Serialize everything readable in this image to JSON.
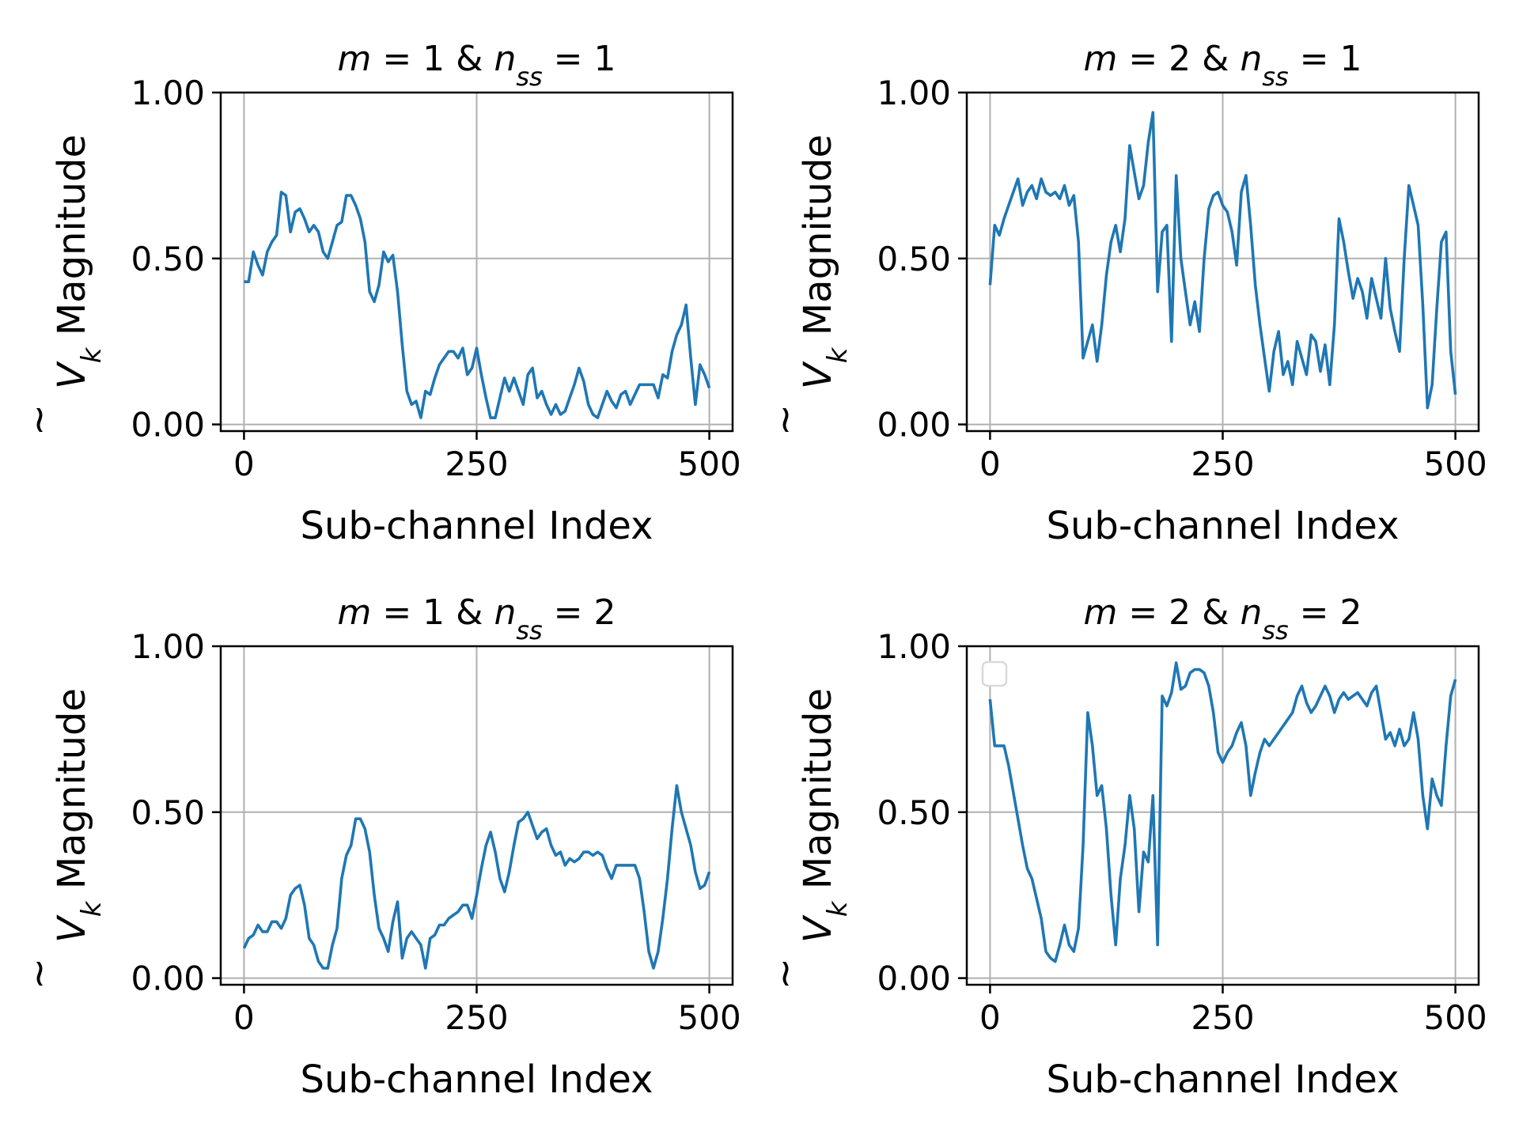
{
  "colors": {
    "series": "#1f77b4",
    "grid": "#b0b0b0",
    "axis": "#000000",
    "legend_border": "#d9d9d9"
  },
  "chart_data": [
    {
      "type": "line",
      "title": "m = 1 & n_ss = 1",
      "title_parts": {
        "a": "m",
        "b": " = 1 & ",
        "c": "n",
        "sub": "ss",
        "d": " = 1"
      },
      "xlabel": "Sub-channel Index",
      "ylabel": "Ṽ_k Magnitude",
      "ylabel_parts": {
        "sym": "V",
        "tilde": "~",
        "sub": "k",
        "rest": " Magnitude"
      },
      "xlim": [
        -25,
        525
      ],
      "ylim": [
        -0.02,
        1.0
      ],
      "xticks": [
        0,
        250,
        500
      ],
      "xtick_labels": [
        "0",
        "250",
        "500"
      ],
      "yticks": [
        0,
        0.5,
        1.0
      ],
      "ytick_labels": [
        "0.00",
        "0.50",
        "1.00"
      ],
      "grid": true,
      "legend": "none",
      "x": [
        0,
        5,
        10,
        15,
        20,
        25,
        30,
        35,
        40,
        45,
        50,
        55,
        60,
        65,
        70,
        75,
        80,
        85,
        90,
        95,
        100,
        105,
        110,
        115,
        120,
        125,
        130,
        135,
        140,
        145,
        150,
        155,
        160,
        165,
        170,
        175,
        180,
        185,
        190,
        195,
        200,
        205,
        210,
        215,
        220,
        225,
        230,
        235,
        240,
        245,
        250,
        255,
        260,
        265,
        270,
        275,
        280,
        285,
        290,
        295,
        300,
        305,
        310,
        315,
        320,
        325,
        330,
        335,
        340,
        345,
        350,
        355,
        360,
        365,
        370,
        375,
        380,
        385,
        390,
        395,
        400,
        405,
        410,
        415,
        420,
        425,
        430,
        435,
        440,
        445,
        450,
        455,
        460,
        465,
        470,
        475,
        480,
        485,
        490,
        495,
        500
      ],
      "y": [
        0.43,
        0.43,
        0.52,
        0.48,
        0.45,
        0.52,
        0.55,
        0.57,
        0.7,
        0.69,
        0.58,
        0.64,
        0.65,
        0.62,
        0.58,
        0.6,
        0.58,
        0.52,
        0.5,
        0.55,
        0.6,
        0.61,
        0.69,
        0.69,
        0.66,
        0.62,
        0.55,
        0.4,
        0.37,
        0.42,
        0.52,
        0.49,
        0.51,
        0.4,
        0.24,
        0.1,
        0.06,
        0.07,
        0.02,
        0.1,
        0.09,
        0.14,
        0.18,
        0.2,
        0.22,
        0.22,
        0.2,
        0.23,
        0.15,
        0.17,
        0.23,
        0.15,
        0.08,
        0.02,
        0.02,
        0.08,
        0.14,
        0.1,
        0.14,
        0.1,
        0.06,
        0.15,
        0.17,
        0.08,
        0.1,
        0.06,
        0.03,
        0.06,
        0.03,
        0.04,
        0.08,
        0.12,
        0.17,
        0.13,
        0.06,
        0.03,
        0.02,
        0.06,
        0.1,
        0.07,
        0.05,
        0.09,
        0.1,
        0.06,
        0.09,
        0.12,
        0.12,
        0.12,
        0.12,
        0.08,
        0.15,
        0.14,
        0.22,
        0.27,
        0.3,
        0.36,
        0.2,
        0.06,
        0.18,
        0.15,
        0.11
      ]
    },
    {
      "type": "line",
      "title": "m = 2 & n_ss = 1",
      "title_parts": {
        "a": "m",
        "b": " = 2 & ",
        "c": "n",
        "sub": "ss",
        "d": " = 1"
      },
      "xlabel": "Sub-channel Index",
      "ylabel": "Ṽ_k Magnitude",
      "ylabel_parts": {
        "sym": "V",
        "tilde": "~",
        "sub": "k",
        "rest": " Magnitude"
      },
      "xlim": [
        -25,
        525
      ],
      "ylim": [
        -0.02,
        1.0
      ],
      "xticks": [
        0,
        250,
        500
      ],
      "xtick_labels": [
        "0",
        "250",
        "500"
      ],
      "yticks": [
        0,
        0.5,
        1.0
      ],
      "ytick_labels": [
        "0.00",
        "0.50",
        "1.00"
      ],
      "grid": true,
      "legend": "none",
      "x": [
        0,
        5,
        10,
        15,
        20,
        25,
        30,
        35,
        40,
        45,
        50,
        55,
        60,
        65,
        70,
        75,
        80,
        85,
        90,
        95,
        100,
        105,
        110,
        115,
        120,
        125,
        130,
        135,
        140,
        145,
        150,
        155,
        160,
        165,
        170,
        175,
        180,
        185,
        190,
        195,
        200,
        205,
        210,
        215,
        220,
        225,
        230,
        235,
        240,
        245,
        250,
        255,
        260,
        265,
        270,
        275,
        280,
        285,
        290,
        295,
        300,
        305,
        310,
        315,
        320,
        325,
        330,
        335,
        340,
        345,
        350,
        355,
        360,
        365,
        370,
        375,
        380,
        385,
        390,
        395,
        400,
        405,
        410,
        415,
        420,
        425,
        430,
        435,
        440,
        445,
        450,
        455,
        460,
        465,
        470,
        475,
        480,
        485,
        490,
        495,
        500
      ],
      "y": [
        0.42,
        0.6,
        0.57,
        0.62,
        0.66,
        0.7,
        0.74,
        0.66,
        0.7,
        0.72,
        0.68,
        0.74,
        0.7,
        0.69,
        0.7,
        0.68,
        0.72,
        0.66,
        0.69,
        0.55,
        0.2,
        0.25,
        0.3,
        0.19,
        0.3,
        0.45,
        0.55,
        0.6,
        0.52,
        0.62,
        0.84,
        0.76,
        0.68,
        0.72,
        0.85,
        0.94,
        0.4,
        0.58,
        0.6,
        0.25,
        0.75,
        0.5,
        0.4,
        0.3,
        0.37,
        0.28,
        0.5,
        0.65,
        0.69,
        0.7,
        0.66,
        0.64,
        0.58,
        0.48,
        0.7,
        0.75,
        0.6,
        0.42,
        0.3,
        0.2,
        0.1,
        0.22,
        0.28,
        0.15,
        0.19,
        0.12,
        0.25,
        0.2,
        0.15,
        0.27,
        0.25,
        0.16,
        0.24,
        0.12,
        0.3,
        0.62,
        0.55,
        0.46,
        0.38,
        0.44,
        0.4,
        0.32,
        0.44,
        0.38,
        0.32,
        0.5,
        0.35,
        0.28,
        0.22,
        0.5,
        0.72,
        0.66,
        0.6,
        0.36,
        0.05,
        0.12,
        0.35,
        0.55,
        0.58,
        0.22,
        0.09
      ]
    },
    {
      "type": "line",
      "title": "m = 1 & n_ss = 2",
      "title_parts": {
        "a": "m",
        "b": " = 1 & ",
        "c": "n",
        "sub": "ss",
        "d": " = 2"
      },
      "xlabel": "Sub-channel Index",
      "ylabel": "Ṽ_k Magnitude",
      "ylabel_parts": {
        "sym": "V",
        "tilde": "~",
        "sub": "k",
        "rest": " Magnitude"
      },
      "xlim": [
        -25,
        525
      ],
      "ylim": [
        -0.02,
        1.0
      ],
      "xticks": [
        0,
        250,
        500
      ],
      "xtick_labels": [
        "0",
        "250",
        "500"
      ],
      "yticks": [
        0,
        0.5,
        1.0
      ],
      "ytick_labels": [
        "0.00",
        "0.50",
        "1.00"
      ],
      "grid": true,
      "legend": "none",
      "x": [
        0,
        5,
        10,
        15,
        20,
        25,
        30,
        35,
        40,
        45,
        50,
        55,
        60,
        65,
        70,
        75,
        80,
        85,
        90,
        95,
        100,
        105,
        110,
        115,
        120,
        125,
        130,
        135,
        140,
        145,
        150,
        155,
        160,
        165,
        170,
        175,
        180,
        185,
        190,
        195,
        200,
        205,
        210,
        215,
        220,
        225,
        230,
        235,
        240,
        245,
        250,
        255,
        260,
        265,
        270,
        275,
        280,
        285,
        290,
        295,
        300,
        305,
        310,
        315,
        320,
        325,
        330,
        335,
        340,
        345,
        350,
        355,
        360,
        365,
        370,
        375,
        380,
        385,
        390,
        395,
        400,
        405,
        410,
        415,
        420,
        425,
        430,
        435,
        440,
        445,
        450,
        455,
        460,
        465,
        470,
        475,
        480,
        485,
        490,
        495,
        500
      ],
      "y": [
        0.09,
        0.12,
        0.13,
        0.16,
        0.14,
        0.14,
        0.17,
        0.17,
        0.15,
        0.18,
        0.25,
        0.27,
        0.28,
        0.22,
        0.12,
        0.1,
        0.05,
        0.03,
        0.03,
        0.1,
        0.15,
        0.3,
        0.37,
        0.4,
        0.48,
        0.48,
        0.45,
        0.38,
        0.25,
        0.15,
        0.12,
        0.08,
        0.17,
        0.23,
        0.06,
        0.12,
        0.14,
        0.12,
        0.1,
        0.03,
        0.12,
        0.13,
        0.16,
        0.16,
        0.18,
        0.19,
        0.2,
        0.22,
        0.22,
        0.18,
        0.25,
        0.33,
        0.4,
        0.44,
        0.38,
        0.3,
        0.26,
        0.32,
        0.4,
        0.47,
        0.48,
        0.5,
        0.46,
        0.42,
        0.44,
        0.45,
        0.4,
        0.37,
        0.38,
        0.34,
        0.36,
        0.35,
        0.36,
        0.38,
        0.38,
        0.37,
        0.38,
        0.37,
        0.33,
        0.3,
        0.34,
        0.34,
        0.34,
        0.34,
        0.34,
        0.3,
        0.2,
        0.08,
        0.03,
        0.08,
        0.18,
        0.3,
        0.45,
        0.58,
        0.5,
        0.45,
        0.4,
        0.32,
        0.27,
        0.28,
        0.32
      ]
    },
    {
      "type": "line",
      "title": "m = 2 & n_ss = 2",
      "title_parts": {
        "a": "m",
        "b": " = 2 & ",
        "c": "n",
        "sub": "ss",
        "d": " = 2"
      },
      "xlabel": "Sub-channel Index",
      "ylabel": "Ṽ_k Magnitude",
      "ylabel_parts": {
        "sym": "V",
        "tilde": "~",
        "sub": "k",
        "rest": " Magnitude"
      },
      "xlim": [
        -25,
        525
      ],
      "ylim": [
        -0.02,
        1.0
      ],
      "xticks": [
        0,
        250,
        500
      ],
      "xtick_labels": [
        "0",
        "250",
        "500"
      ],
      "yticks": [
        0,
        0.5,
        1.0
      ],
      "ytick_labels": [
        "0.00",
        "0.50",
        "1.00"
      ],
      "grid": true,
      "legend": "upper-left (empty)",
      "x": [
        0,
        5,
        10,
        15,
        20,
        25,
        30,
        35,
        40,
        45,
        50,
        55,
        60,
        65,
        70,
        75,
        80,
        85,
        90,
        95,
        100,
        105,
        110,
        115,
        120,
        125,
        130,
        135,
        140,
        145,
        150,
        155,
        160,
        165,
        170,
        175,
        180,
        185,
        190,
        195,
        200,
        205,
        210,
        215,
        220,
        225,
        230,
        235,
        240,
        245,
        250,
        255,
        260,
        265,
        270,
        275,
        280,
        285,
        290,
        295,
        300,
        305,
        310,
        315,
        320,
        325,
        330,
        335,
        340,
        345,
        350,
        355,
        360,
        365,
        370,
        375,
        380,
        385,
        390,
        395,
        400,
        405,
        410,
        415,
        420,
        425,
        430,
        435,
        440,
        445,
        450,
        455,
        460,
        465,
        470,
        475,
        480,
        485,
        490,
        495,
        500
      ],
      "y": [
        0.84,
        0.7,
        0.7,
        0.7,
        0.64,
        0.56,
        0.48,
        0.4,
        0.33,
        0.3,
        0.24,
        0.18,
        0.08,
        0.06,
        0.05,
        0.1,
        0.16,
        0.1,
        0.08,
        0.15,
        0.4,
        0.8,
        0.7,
        0.55,
        0.58,
        0.45,
        0.25,
        0.1,
        0.3,
        0.4,
        0.55,
        0.45,
        0.2,
        0.38,
        0.35,
        0.55,
        0.1,
        0.85,
        0.82,
        0.86,
        0.95,
        0.87,
        0.88,
        0.92,
        0.93,
        0.93,
        0.92,
        0.88,
        0.8,
        0.68,
        0.65,
        0.68,
        0.7,
        0.74,
        0.77,
        0.7,
        0.55,
        0.62,
        0.68,
        0.72,
        0.7,
        0.72,
        0.74,
        0.76,
        0.78,
        0.8,
        0.85,
        0.88,
        0.83,
        0.8,
        0.82,
        0.85,
        0.88,
        0.85,
        0.8,
        0.84,
        0.86,
        0.84,
        0.85,
        0.86,
        0.84,
        0.82,
        0.86,
        0.88,
        0.8,
        0.72,
        0.74,
        0.7,
        0.75,
        0.7,
        0.72,
        0.8,
        0.72,
        0.55,
        0.45,
        0.6,
        0.55,
        0.52,
        0.7,
        0.85,
        0.9
      ]
    }
  ]
}
